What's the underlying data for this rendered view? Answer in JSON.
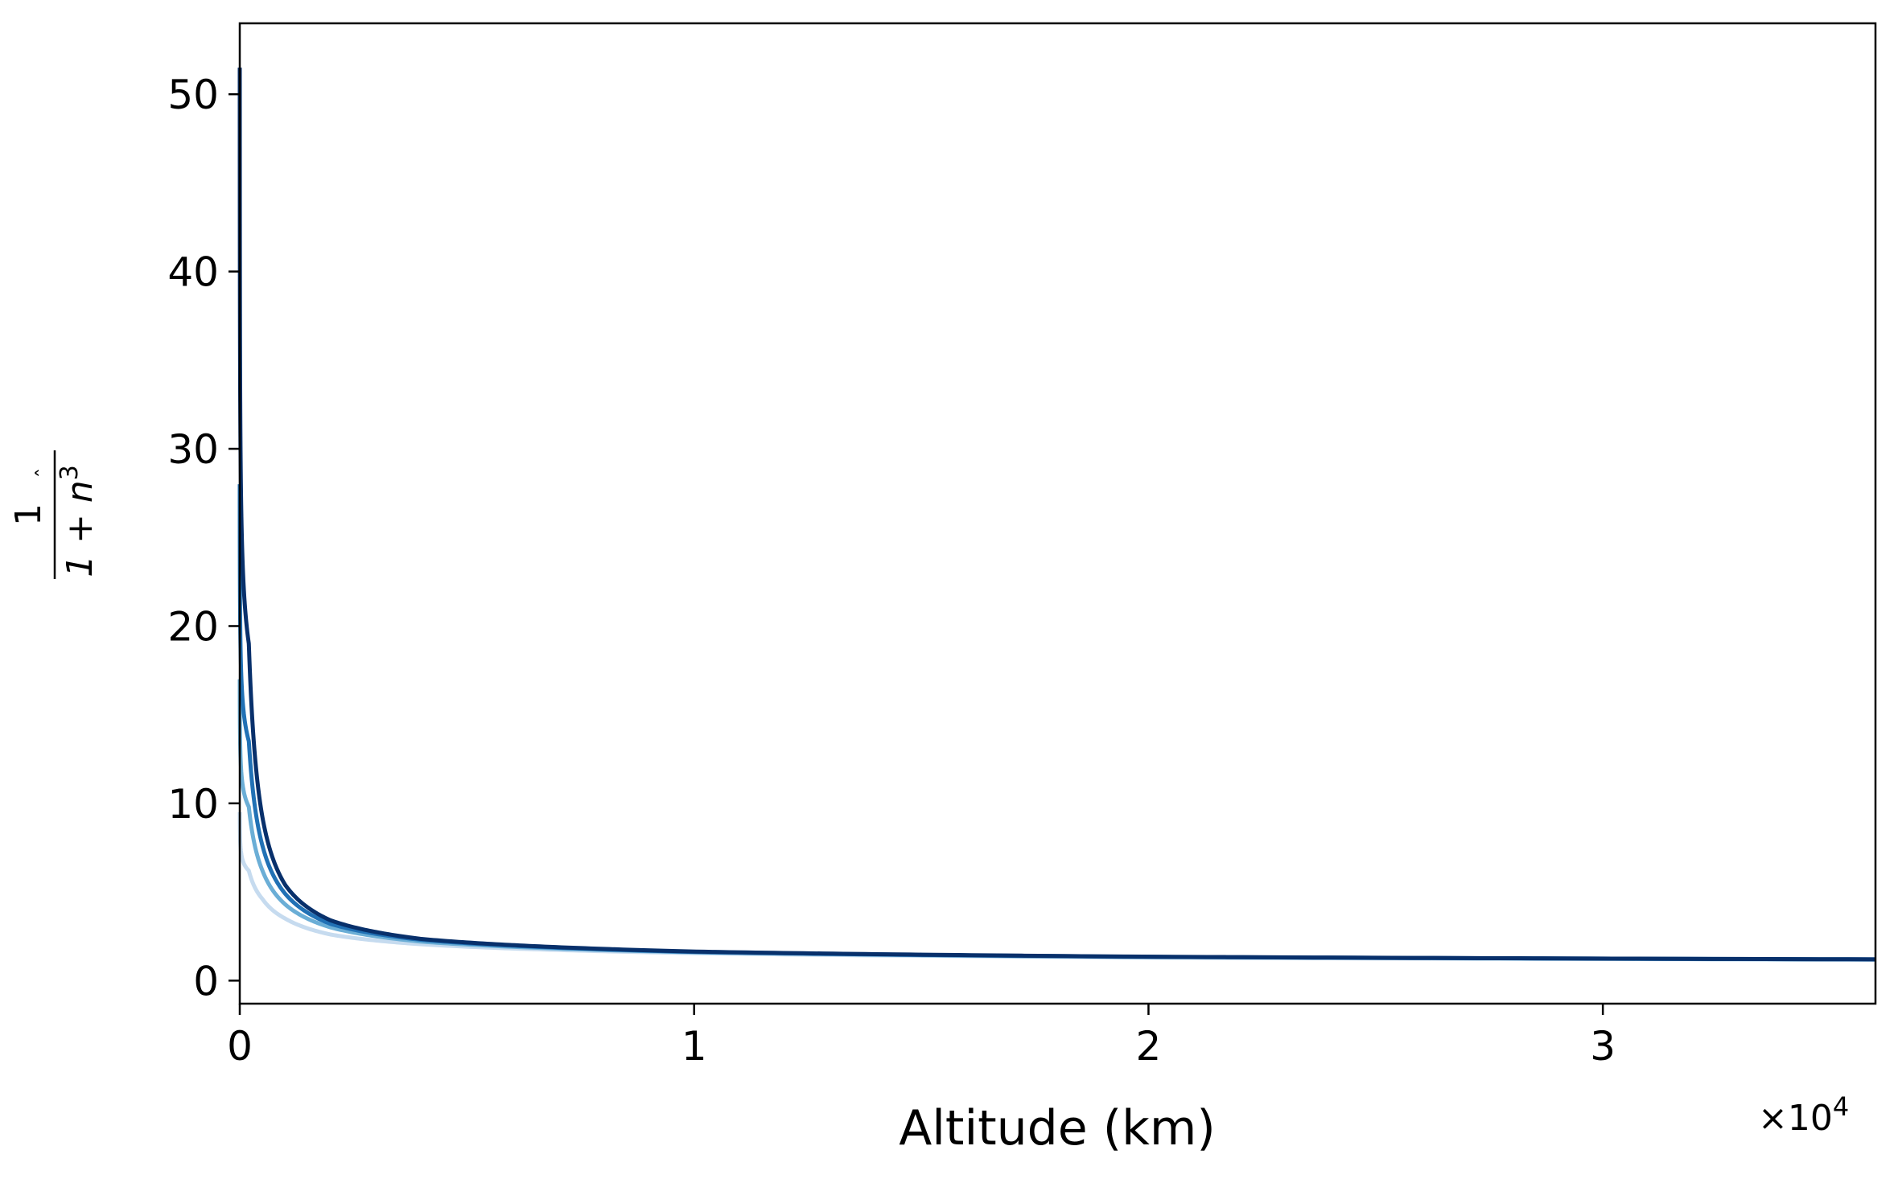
{
  "chart_data": {
    "type": "line",
    "xlabel": "Altitude (km)",
    "ylabel": {
      "numerator": "1",
      "denominator": "1 + n",
      "superscript": "3",
      "hat": "ˆ"
    },
    "x_scale_label": "×10",
    "x_scale_exponent": "4",
    "xlim": [
      0,
      36000
    ],
    "ylim": [
      -1.3,
      54
    ],
    "x_ticks": [
      0,
      10000,
      20000,
      30000
    ],
    "x_tick_labels": [
      "0",
      "1",
      "2",
      "3"
    ],
    "y_ticks": [
      0,
      10,
      20,
      30,
      40,
      50
    ],
    "y_tick_labels": [
      "0",
      "10",
      "20",
      "30",
      "40",
      "50"
    ],
    "grid": false,
    "series": [
      {
        "color": "#c6dbef",
        "values_at_x": {
          "x": [
            0,
            200,
            500,
            1000,
            2000,
            4000,
            10000,
            20000,
            36000
          ],
          "y": [
            9.5,
            6.2,
            4.6,
            3.5,
            2.6,
            2.05,
            1.55,
            1.3,
            1.18
          ]
        }
      },
      {
        "color": "#6baed6",
        "values_at_x": {
          "x": [
            0,
            200,
            500,
            1000,
            2000,
            4000,
            10000,
            20000,
            36000
          ],
          "y": [
            17.0,
            9.8,
            6.2,
            4.3,
            3.0,
            2.2,
            1.6,
            1.33,
            1.19
          ]
        }
      },
      {
        "color": "#2171b5",
        "values_at_x": {
          "x": [
            0,
            200,
            500,
            1000,
            2000,
            4000,
            10000,
            20000,
            36000
          ],
          "y": [
            28.0,
            13.5,
            7.6,
            4.9,
            3.2,
            2.3,
            1.62,
            1.34,
            1.2
          ]
        }
      },
      {
        "color": "#08306b",
        "values_at_x": {
          "x": [
            0,
            200,
            500,
            1000,
            2000,
            4000,
            10000,
            20000,
            36000
          ],
          "y": [
            51.5,
            19.0,
            9.2,
            5.4,
            3.4,
            2.35,
            1.64,
            1.35,
            1.2
          ]
        }
      }
    ]
  }
}
